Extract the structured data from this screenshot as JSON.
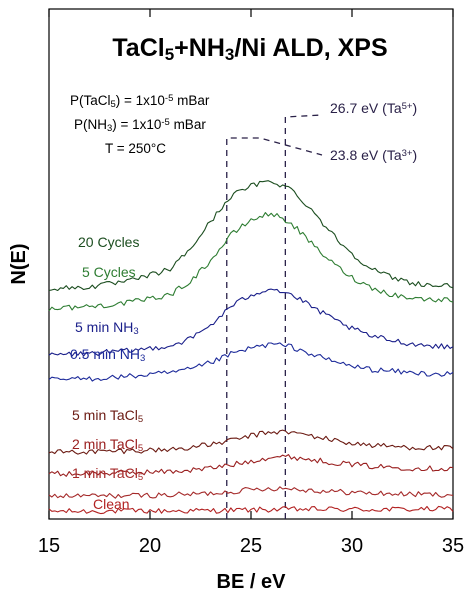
{
  "chart_data": {
    "type": "line",
    "title": "TaCl5+NH3/Ni ALD, XPS",
    "title_parts": [
      "TaCl",
      "5",
      "+NH",
      "3",
      "/Ni ALD, XPS"
    ],
    "xlabel": "BE / eV",
    "ylabel": "N(E)",
    "xlim": [
      15,
      35
    ],
    "xticks": [
      15,
      20,
      25,
      30,
      35
    ],
    "grid": false,
    "conditions": [
      {
        "prefix": "P(TaCl",
        "sub": "5",
        "mid": ") = 1x10",
        "sup": "-5",
        "suffix": " mBar"
      },
      {
        "prefix": "P(NH",
        "sub": "3",
        "mid": ") = 1x10",
        "sup": "-5",
        "suffix": " mBar"
      },
      {
        "prefix": "T = 250°C",
        "sub": "",
        "mid": "",
        "sup": "",
        "suffix": ""
      }
    ],
    "reference_lines": [
      {
        "x": 26.7,
        "label_main": "26.7 eV (Ta",
        "label_sup": "5+",
        "label_end": ")",
        "color": "#2a2148"
      },
      {
        "x": 23.8,
        "label_main": "23.8 eV (Ta",
        "label_sup": "3+",
        "label_end": ")",
        "color": "#2a2148"
      }
    ],
    "series": [
      {
        "name": "Clean",
        "name_main": "Clean",
        "name_sub": "",
        "color": "#b22222",
        "x": [
          15,
          17,
          19,
          21,
          23,
          24,
          25,
          26,
          27,
          29,
          31,
          33,
          35
        ],
        "y": [
          0.08,
          0.08,
          0.09,
          0.09,
          0.1,
          0.11,
          0.12,
          0.13,
          0.14,
          0.14,
          0.13,
          0.14,
          0.15
        ]
      },
      {
        "name": "1 min TaCl5",
        "name_main": "1 min TaCl",
        "name_sub": "5",
        "color": "#a52a2a",
        "x": [
          15,
          17,
          19,
          21,
          22,
          23,
          24,
          25,
          26,
          27,
          28,
          29,
          30,
          31,
          33,
          35
        ],
        "y": [
          0.53,
          0.53,
          0.54,
          0.56,
          0.58,
          0.61,
          0.66,
          0.72,
          0.76,
          0.75,
          0.7,
          0.66,
          0.64,
          0.61,
          0.58,
          0.57
        ]
      },
      {
        "name": "2 min TaCl5",
        "name_main": "2 min TaCl",
        "name_sub": "5",
        "color": "#9a2020",
        "x": [
          15,
          17,
          19,
          21,
          22,
          23,
          24,
          25,
          26,
          27,
          28,
          29,
          30,
          31,
          33,
          35
        ],
        "y": [
          1.18,
          1.19,
          1.22,
          1.25,
          1.29,
          1.35,
          1.44,
          1.56,
          1.68,
          1.68,
          1.6,
          1.52,
          1.46,
          1.4,
          1.35,
          1.33
        ]
      },
      {
        "name": "5 min TaCl5",
        "name_main": "5 min TaCl",
        "name_sub": "5",
        "color": "#6b1a12",
        "x": [
          15,
          17,
          19,
          21,
          22,
          23,
          24,
          25,
          26,
          27,
          28,
          29,
          30,
          31,
          33,
          35
        ],
        "y": [
          1.82,
          1.83,
          1.86,
          1.9,
          1.96,
          2.04,
          2.16,
          2.3,
          2.42,
          2.4,
          2.3,
          2.18,
          2.08,
          2.02,
          1.96,
          1.93
        ]
      },
      {
        "name": "0.5 min NH3",
        "name_main": "0.5 min NH",
        "name_sub": "3",
        "color": "#1c2a9a",
        "x": [
          15,
          17,
          19,
          21,
          22,
          23,
          24,
          25,
          26,
          27,
          28,
          29,
          30,
          31,
          33,
          35
        ],
        "y": [
          3.95,
          3.98,
          4.05,
          4.15,
          4.25,
          4.45,
          4.7,
          4.88,
          5.0,
          4.92,
          4.7,
          4.5,
          4.35,
          4.25,
          4.15,
          4.1
        ]
      },
      {
        "name": "5 min NH3",
        "name_main": "5 min NH",
        "name_sub": "3",
        "color": "#1a1f8a",
        "x": [
          15,
          17,
          19,
          21,
          22,
          23,
          24,
          25,
          26,
          27,
          28,
          29,
          30,
          31,
          33,
          35
        ],
        "y": [
          4.68,
          4.72,
          4.8,
          4.95,
          5.15,
          5.55,
          6.1,
          6.45,
          6.65,
          6.45,
          6.1,
          5.75,
          5.45,
          5.22,
          5.0,
          4.9
        ]
      },
      {
        "name": "5 Cycles",
        "name_main": "5 Cycles",
        "name_sub": "",
        "color": "#2e7d32",
        "x": [
          15,
          17,
          19,
          21,
          22,
          23,
          24,
          25,
          26,
          27,
          28,
          29,
          30,
          31,
          32,
          33,
          34,
          35
        ],
        "y": [
          6.05,
          6.1,
          6.22,
          6.45,
          6.85,
          7.45,
          8.2,
          8.65,
          8.85,
          8.55,
          7.95,
          7.4,
          6.95,
          6.65,
          6.45,
          6.35,
          6.3,
          6.3
        ]
      },
      {
        "name": "20 Cycles",
        "name_main": "20 Cycles",
        "name_sub": "",
        "color": "#1b4d1f",
        "x": [
          15,
          17,
          19,
          21,
          22,
          23,
          24,
          25,
          26,
          27,
          28,
          29,
          30,
          31,
          32,
          33,
          34,
          35
        ],
        "y": [
          6.62,
          6.68,
          6.85,
          7.2,
          7.8,
          8.6,
          9.35,
          9.65,
          9.8,
          9.55,
          8.95,
          8.25,
          7.65,
          7.2,
          6.95,
          6.8,
          6.72,
          6.7
        ]
      }
    ]
  }
}
